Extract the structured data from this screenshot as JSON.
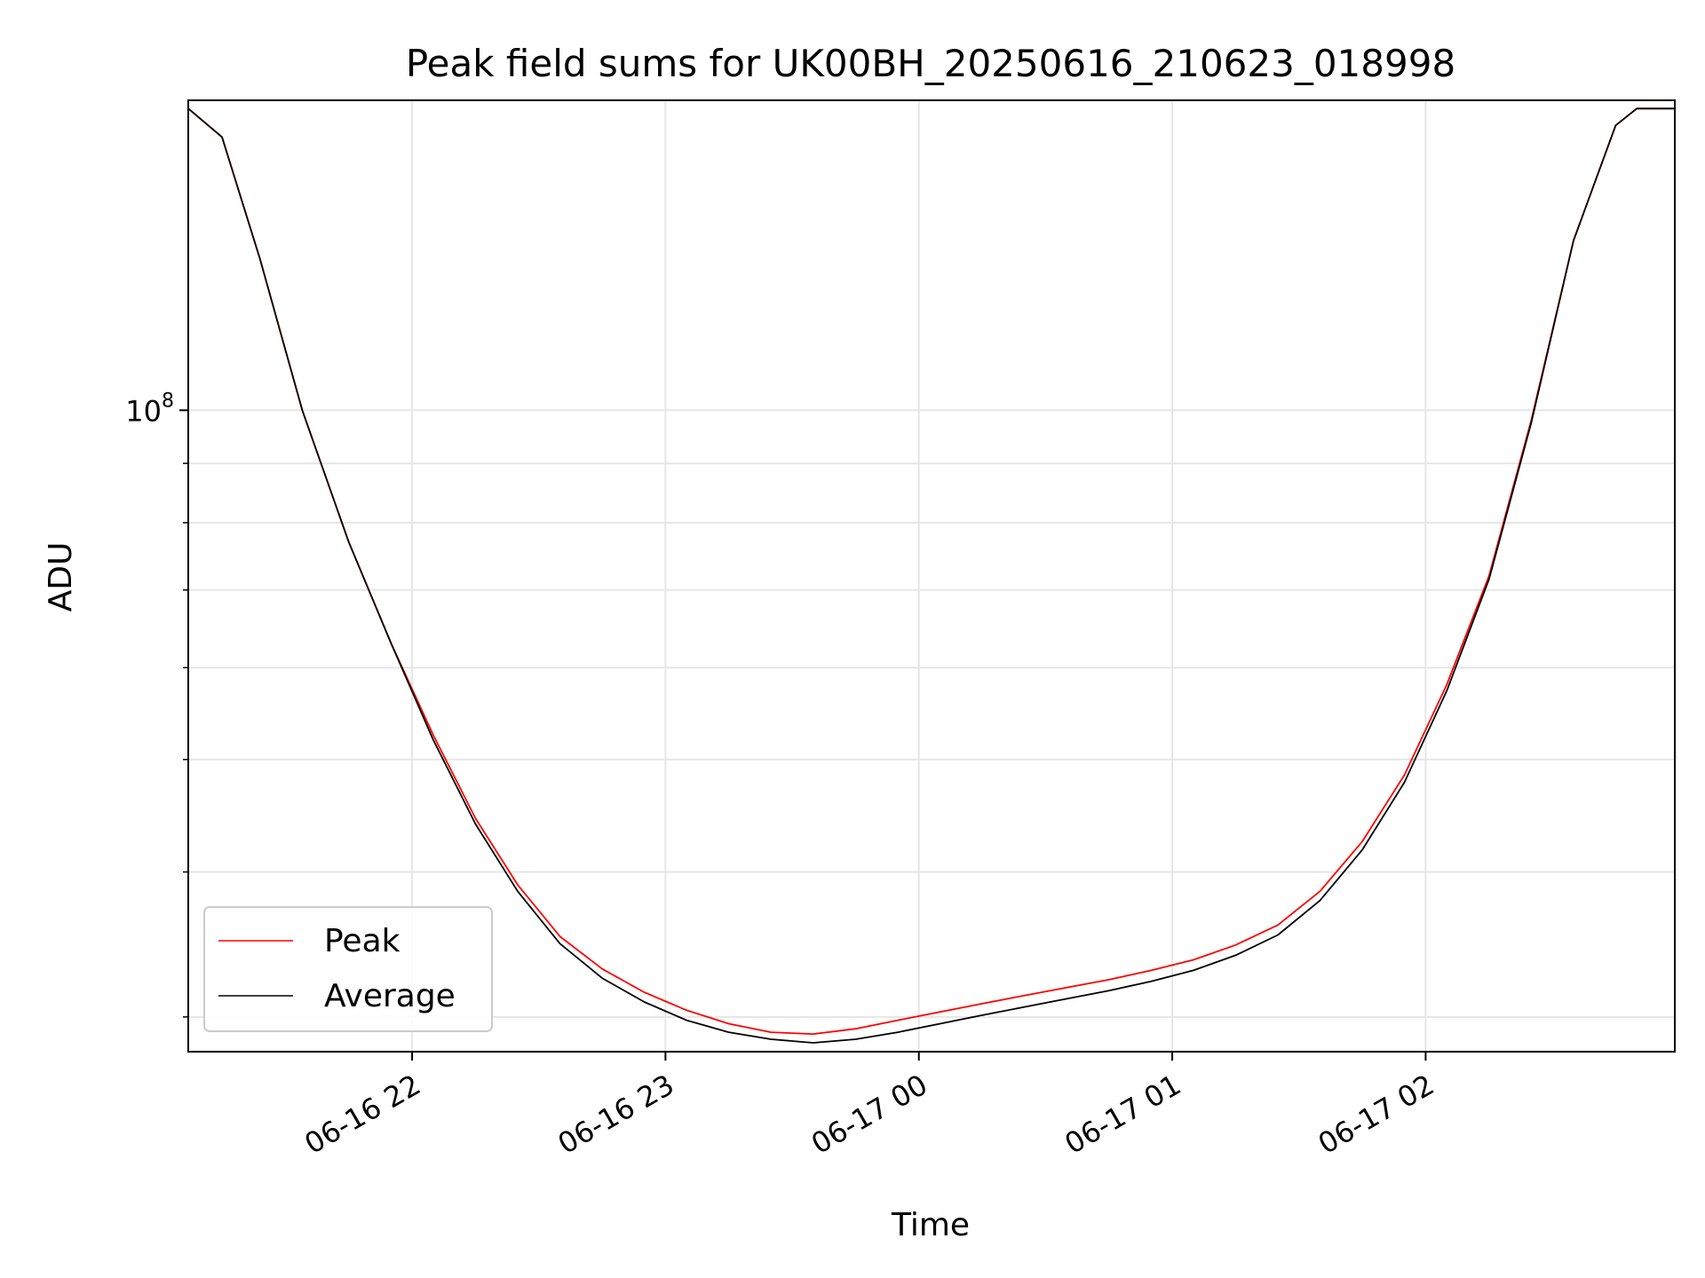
{
  "chart_data": {
    "type": "line",
    "title": "Peak field sums for UK00BH_20250616_210623_018998",
    "xlabel": "Time",
    "ylabel": "ADU",
    "yscale": "log",
    "grid": true,
    "legend_position": "lower-left",
    "xlim": [
      "2025-06-16 21:07",
      "2025-06-17 02:59"
    ],
    "ylim": [
      28000000,
      185000000
    ],
    "xticks": [
      {
        "value": "2025-06-16 22:00",
        "label": "06-16 22"
      },
      {
        "value": "2025-06-16 23:00",
        "label": "06-16 23"
      },
      {
        "value": "2025-06-17 00:00",
        "label": "06-17 00"
      },
      {
        "value": "2025-06-17 01:00",
        "label": "06-17 01"
      },
      {
        "value": "2025-06-17 02:00",
        "label": "06-17 02"
      }
    ],
    "yticks": [
      {
        "value": 100000000,
        "base": "10",
        "exp": "8"
      }
    ],
    "series": [
      {
        "name": "Peak",
        "color": "#ff0000",
        "x": [
          "2025-06-16 21:07",
          "2025-06-16 21:15",
          "2025-06-16 21:24",
          "2025-06-16 21:34",
          "2025-06-16 21:45",
          "2025-06-16 21:55",
          "2025-06-16 22:05",
          "2025-06-16 22:15",
          "2025-06-16 22:25",
          "2025-06-16 22:35",
          "2025-06-16 22:45",
          "2025-06-16 22:55",
          "2025-06-16 23:05",
          "2025-06-16 23:15",
          "2025-06-16 23:25",
          "2025-06-16 23:35",
          "2025-06-16 23:45",
          "2025-06-16 23:55",
          "2025-06-17 00:05",
          "2025-06-17 00:15",
          "2025-06-17 00:25",
          "2025-06-17 00:35",
          "2025-06-17 00:45",
          "2025-06-17 00:55",
          "2025-06-17 01:05",
          "2025-06-17 01:15",
          "2025-06-17 01:25",
          "2025-06-17 01:35",
          "2025-06-17 01:45",
          "2025-06-17 01:55",
          "2025-06-17 02:05",
          "2025-06-17 02:15",
          "2025-06-17 02:25",
          "2025-06-17 02:35",
          "2025-06-17 02:45",
          "2025-06-17 02:50",
          "2025-06-17 02:59"
        ],
        "values": [
          182000000,
          172000000,
          135000000,
          100000000,
          77000000,
          63000000,
          52500000,
          44500000,
          39000000,
          35200000,
          33000000,
          31500000,
          30400000,
          29600000,
          29100000,
          29000000,
          29300000,
          29800000,
          30300000,
          30800000,
          31300000,
          31800000,
          32300000,
          32900000,
          33600000,
          34600000,
          36000000,
          38500000,
          42500000,
          48500000,
          58000000,
          72000000,
          98000000,
          140000000,
          176000000,
          182000000,
          182000000
        ]
      },
      {
        "name": "Average",
        "color": "#000000",
        "x": [
          "2025-06-16 21:07",
          "2025-06-16 21:15",
          "2025-06-16 21:24",
          "2025-06-16 21:34",
          "2025-06-16 21:45",
          "2025-06-16 21:55",
          "2025-06-16 22:05",
          "2025-06-16 22:15",
          "2025-06-16 22:25",
          "2025-06-16 22:35",
          "2025-06-16 22:45",
          "2025-06-16 22:55",
          "2025-06-16 23:05",
          "2025-06-16 23:15",
          "2025-06-16 23:25",
          "2025-06-16 23:35",
          "2025-06-16 23:45",
          "2025-06-16 23:55",
          "2025-06-17 00:05",
          "2025-06-17 00:15",
          "2025-06-17 00:25",
          "2025-06-17 00:35",
          "2025-06-17 00:45",
          "2025-06-17 00:55",
          "2025-06-17 01:05",
          "2025-06-17 01:15",
          "2025-06-17 01:25",
          "2025-06-17 01:35",
          "2025-06-17 01:45",
          "2025-06-17 01:55",
          "2025-06-17 02:05",
          "2025-06-17 02:15",
          "2025-06-17 02:25",
          "2025-06-17 02:35",
          "2025-06-17 02:45",
          "2025-06-17 02:50",
          "2025-06-17 02:59"
        ],
        "values": [
          182000000,
          172000000,
          135000000,
          100000000,
          77000000,
          63000000,
          52000000,
          44000000,
          38500000,
          34700000,
          32400000,
          30900000,
          29800000,
          29100000,
          28700000,
          28500000,
          28700000,
          29100000,
          29600000,
          30100000,
          30600000,
          31100000,
          31600000,
          32200000,
          32900000,
          33900000,
          35300000,
          37800000,
          41800000,
          47800000,
          57300000,
          71500000,
          97500000,
          140000000,
          176000000,
          182000000,
          182000000
        ]
      }
    ]
  }
}
